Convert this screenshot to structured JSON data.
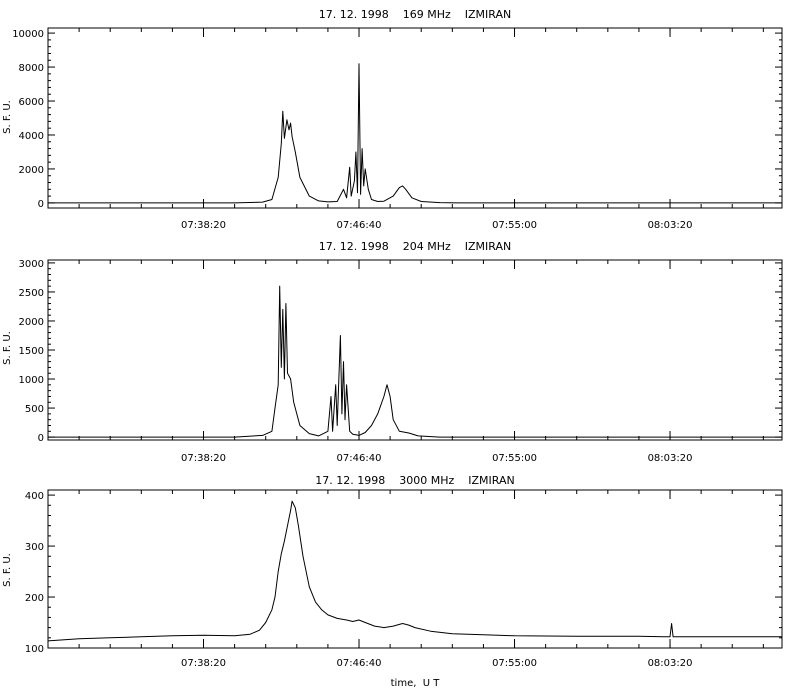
{
  "colors": {
    "line": "#000000",
    "background": "#ffffff"
  },
  "chart_data": [
    {
      "type": "line",
      "title": "17. 12. 1998    169 MHz    IZMIRAN",
      "ylabel": "S. F. U.",
      "xlabel": "",
      "x_unit": "UT",
      "xlim": [
        "07:30:00",
        "08:09:20"
      ],
      "ylim": [
        -300,
        10300
      ],
      "yticks": [
        0,
        2000,
        4000,
        6000,
        8000,
        10000
      ],
      "ytick_labels": [
        "0",
        "2000",
        "4000",
        "6000",
        "8000",
        "10000"
      ],
      "xticks": [
        "07:38:20",
        "07:46:40",
        "07:55:00",
        "08:03:20"
      ],
      "grid": false,
      "series": [
        {
          "points": [
            [
              "07:30:00",
              0
            ],
            [
              "07:40:00",
              0
            ],
            [
              "07:41:30",
              50
            ],
            [
              "07:42:00",
              200
            ],
            [
              "07:42:20",
              1500
            ],
            [
              "07:42:30",
              3500
            ],
            [
              "07:42:35",
              5400
            ],
            [
              "07:42:40",
              3800
            ],
            [
              "07:42:48",
              4900
            ],
            [
              "07:42:55",
              4300
            ],
            [
              "07:43:00",
              4700
            ],
            [
              "07:43:05",
              3900
            ],
            [
              "07:43:15",
              3000
            ],
            [
              "07:43:30",
              1500
            ],
            [
              "07:44:00",
              400
            ],
            [
              "07:44:30",
              120
            ],
            [
              "07:45:00",
              60
            ],
            [
              "07:45:30",
              80
            ],
            [
              "07:45:50",
              800
            ],
            [
              "07:46:00",
              300
            ],
            [
              "07:46:10",
              2100
            ],
            [
              "07:46:15",
              400
            ],
            [
              "07:46:25",
              1300
            ],
            [
              "07:46:30",
              3000
            ],
            [
              "07:46:35",
              600
            ],
            [
              "07:46:40",
              8200
            ],
            [
              "07:46:45",
              500
            ],
            [
              "07:46:50",
              3200
            ],
            [
              "07:46:55",
              1000
            ],
            [
              "07:47:00",
              2000
            ],
            [
              "07:47:10",
              800
            ],
            [
              "07:47:20",
              200
            ],
            [
              "07:47:40",
              80
            ],
            [
              "07:48:00",
              100
            ],
            [
              "07:48:30",
              400
            ],
            [
              "07:48:50",
              900
            ],
            [
              "07:49:00",
              1000
            ],
            [
              "07:49:10",
              800
            ],
            [
              "07:49:30",
              300
            ],
            [
              "07:50:00",
              80
            ],
            [
              "07:51:00",
              20
            ],
            [
              "07:52:00",
              0
            ],
            [
              "08:09:20",
              0
            ]
          ]
        }
      ]
    },
    {
      "type": "line",
      "title": "17. 12. 1998    204 MHz    IZMIRAN",
      "ylabel": "S. F. U.",
      "xlabel": "",
      "x_unit": "UT",
      "xlim": [
        "07:30:00",
        "08:09:20"
      ],
      "ylim": [
        -50,
        3050
      ],
      "yticks": [
        0,
        500,
        1000,
        1500,
        2000,
        2500,
        3000
      ],
      "ytick_labels": [
        "0",
        "500",
        "1000",
        "1500",
        "2000",
        "2500",
        "3000"
      ],
      "xticks": [
        "07:38:20",
        "07:46:40",
        "07:55:00",
        "08:03:20"
      ],
      "grid": false,
      "series": [
        {
          "points": [
            [
              "07:30:00",
              0
            ],
            [
              "07:40:00",
              0
            ],
            [
              "07:41:30",
              30
            ],
            [
              "07:42:00",
              100
            ],
            [
              "07:42:10",
              500
            ],
            [
              "07:42:20",
              900
            ],
            [
              "07:42:25",
              2600
            ],
            [
              "07:42:30",
              1200
            ],
            [
              "07:42:35",
              2200
            ],
            [
              "07:42:40",
              1000
            ],
            [
              "07:42:45",
              2300
            ],
            [
              "07:42:50",
              1100
            ],
            [
              "07:43:00",
              1000
            ],
            [
              "07:43:10",
              600
            ],
            [
              "07:43:30",
              200
            ],
            [
              "07:44:00",
              60
            ],
            [
              "07:44:30",
              20
            ],
            [
              "07:45:00",
              100
            ],
            [
              "07:45:10",
              700
            ],
            [
              "07:45:15",
              100
            ],
            [
              "07:45:25",
              900
            ],
            [
              "07:45:30",
              200
            ],
            [
              "07:45:40",
              1750
            ],
            [
              "07:45:45",
              400
            ],
            [
              "07:45:50",
              1300
            ],
            [
              "07:45:55",
              300
            ],
            [
              "07:46:00",
              900
            ],
            [
              "07:46:10",
              100
            ],
            [
              "07:46:20",
              50
            ],
            [
              "07:46:40",
              30
            ],
            [
              "07:47:00",
              80
            ],
            [
              "07:47:20",
              200
            ],
            [
              "07:47:40",
              400
            ],
            [
              "07:48:00",
              700
            ],
            [
              "07:48:10",
              900
            ],
            [
              "07:48:20",
              700
            ],
            [
              "07:48:30",
              300
            ],
            [
              "07:48:50",
              100
            ],
            [
              "07:49:20",
              70
            ],
            [
              "07:49:50",
              20
            ],
            [
              "07:51:00",
              0
            ],
            [
              "08:09:20",
              0
            ]
          ]
        }
      ]
    },
    {
      "type": "line",
      "title": "17. 12. 1998    3000 MHz    IZMIRAN",
      "ylabel": "S. F. U.",
      "xlabel": "time,  U T",
      "x_unit": "UT",
      "xlim": [
        "07:30:00",
        "08:09:20"
      ],
      "ylim": [
        100,
        410
      ],
      "yticks": [
        100,
        200,
        300,
        400
      ],
      "ytick_labels": [
        "100",
        "200",
        "300",
        "400"
      ],
      "xticks": [
        "07:38:20",
        "07:46:40",
        "07:55:00",
        "08:03:20"
      ],
      "grid": false,
      "series": [
        {
          "points": [
            [
              "07:30:00",
              114
            ],
            [
              "07:31:40",
              118
            ],
            [
              "07:33:20",
              120
            ],
            [
              "07:35:00",
              122
            ],
            [
              "07:36:40",
              124
            ],
            [
              "07:38:20",
              125
            ],
            [
              "07:40:00",
              124
            ],
            [
              "07:40:50",
              127
            ],
            [
              "07:41:20",
              135
            ],
            [
              "07:41:40",
              150
            ],
            [
              "07:42:00",
              175
            ],
            [
              "07:42:10",
              200
            ],
            [
              "07:42:20",
              250
            ],
            [
              "07:42:30",
              285
            ],
            [
              "07:42:40",
              310
            ],
            [
              "07:42:50",
              340
            ],
            [
              "07:43:00",
              370
            ],
            [
              "07:43:05",
              388
            ],
            [
              "07:43:15",
              375
            ],
            [
              "07:43:25",
              340
            ],
            [
              "07:43:40",
              280
            ],
            [
              "07:44:00",
              220
            ],
            [
              "07:44:20",
              190
            ],
            [
              "07:44:40",
              175
            ],
            [
              "07:45:00",
              165
            ],
            [
              "07:45:30",
              158
            ],
            [
              "07:46:00",
              155
            ],
            [
              "07:46:20",
              152
            ],
            [
              "07:46:40",
              155
            ],
            [
              "07:47:00",
              150
            ],
            [
              "07:47:30",
              143
            ],
            [
              "07:48:00",
              140
            ],
            [
              "07:48:30",
              143
            ],
            [
              "07:49:00",
              148
            ],
            [
              "07:49:20",
              145
            ],
            [
              "07:49:40",
              140
            ],
            [
              "07:50:30",
              133
            ],
            [
              "07:51:40",
              128
            ],
            [
              "07:53:20",
              126
            ],
            [
              "07:55:00",
              124
            ],
            [
              "07:58:20",
              123
            ],
            [
              "08:01:40",
              123
            ],
            [
              "08:03:00",
              122
            ],
            [
              "08:03:20",
              122
            ],
            [
              "08:03:25",
              148
            ],
            [
              "08:03:30",
              122
            ],
            [
              "08:06:40",
              122
            ],
            [
              "08:09:20",
              122
            ]
          ]
        }
      ]
    }
  ]
}
